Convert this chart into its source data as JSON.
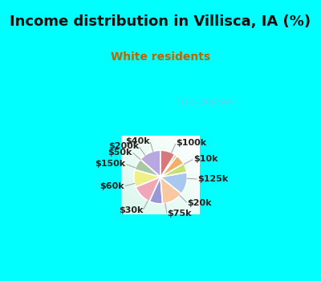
{
  "title": "Income distribution in Villisca, IA (%)",
  "subtitle": "White residents",
  "watermark": "ⓘ City-Data.com",
  "bg_cyan": "#00FFFF",
  "bg_chart_gradient_colors": [
    "#c8ede0",
    "#e8f8f0",
    "#f5fcf8",
    "#ffffff"
  ],
  "labels": [
    "$100k",
    "$10k",
    "$125k",
    "$20k",
    "$75k",
    "$30k",
    "$60k",
    "$150k",
    "$50k",
    "$200k",
    "$40k"
  ],
  "values": [
    13.5,
    7.0,
    10.5,
    12.0,
    8.0,
    13.0,
    13.5,
    5.5,
    6.0,
    1.5,
    9.0
  ],
  "colors": [
    "#b8a8e0",
    "#a8c8a0",
    "#f0f088",
    "#f0a8b8",
    "#9898d8",
    "#f8c8a0",
    "#a8c8f0",
    "#c8e070",
    "#f0b068",
    "#c8b888",
    "#d87878"
  ],
  "startangle": 90,
  "title_fontsize": 13,
  "subtitle_fontsize": 10,
  "title_color": "#111111",
  "subtitle_color": "#bb6600",
  "label_fontsize": 8,
  "label_color": "#222222",
  "wedge_edge_color": "white",
  "wedge_edge_width": 1.2,
  "line_color": "#aaaaaa",
  "line_lw": 0.8
}
